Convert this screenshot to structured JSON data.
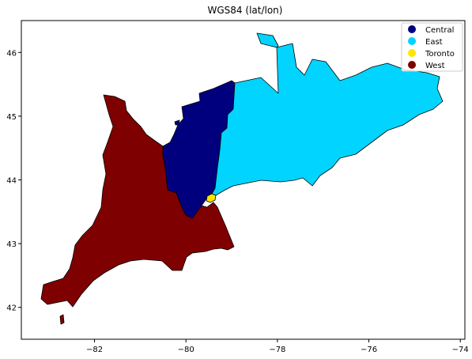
{
  "chart_data": {
    "type": "map",
    "title": "WGS84 (lat/lon)",
    "xlabel": "",
    "ylabel": "",
    "xlim": [
      -83.6,
      -73.9
    ],
    "ylim": [
      41.5,
      46.5
    ],
    "x_ticks": [
      -82,
      -80,
      -78,
      -76,
      -74
    ],
    "y_ticks": [
      42,
      43,
      44,
      45,
      46
    ],
    "x_tick_labels": [
      "−82",
      "−80",
      "−78",
      "−76",
      "−74"
    ],
    "y_tick_labels": [
      "42",
      "43",
      "44",
      "45",
      "46"
    ],
    "grid": false,
    "legend_position": "top-right",
    "series": [
      {
        "name": "Central",
        "color": "#00007f"
      },
      {
        "name": "East",
        "color": "#00d4ff"
      },
      {
        "name": "Toronto",
        "color": "#ffe600"
      },
      {
        "name": "West",
        "color": "#7f0000"
      }
    ]
  }
}
